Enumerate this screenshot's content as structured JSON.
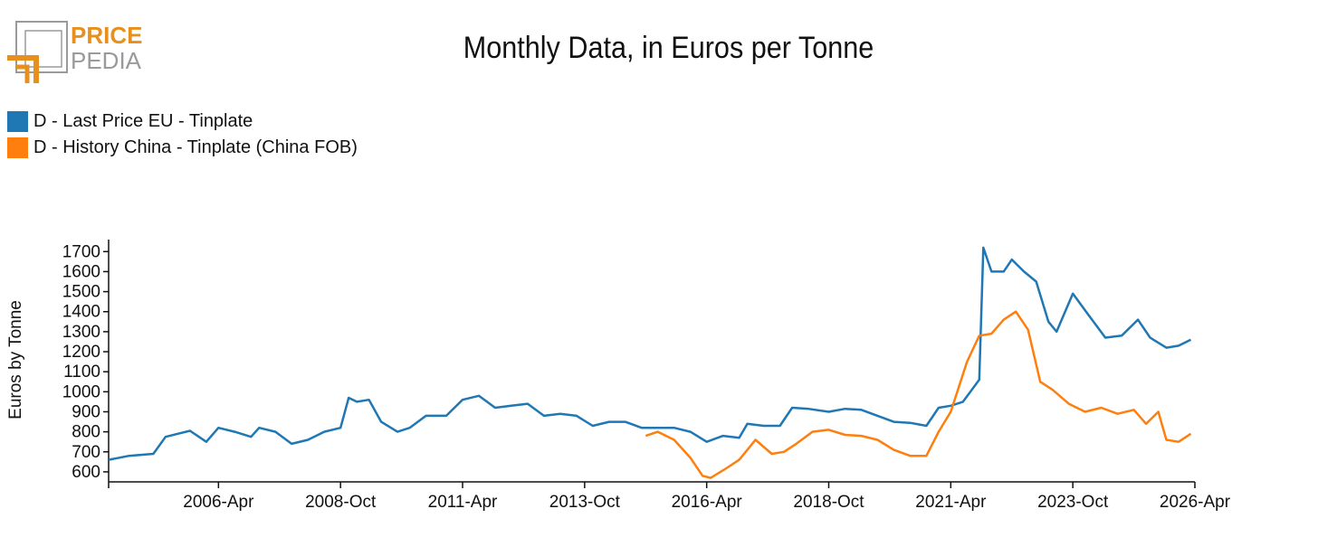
{
  "logo": {
    "line1": "PRICE",
    "line2": "PEDIA"
  },
  "colors": {
    "series1": "#1f77b4",
    "series2": "#ff7f0e",
    "logo_orange": "#e8901e",
    "logo_gray": "#9a9a9a"
  },
  "chart_data": {
    "type": "line",
    "title": "Monthly Data, in Euros per Tonne",
    "xlabel": "",
    "ylabel": "Euros by Tonne",
    "x_start": "2004-01",
    "x_end": "2026-04",
    "ylim": [
      550,
      1760
    ],
    "yticks": [
      600,
      700,
      800,
      900,
      1000,
      1100,
      1200,
      1300,
      1400,
      1500,
      1600,
      1700
    ],
    "xticks": [
      "2006-Apr",
      "2008-Oct",
      "2011-Apr",
      "2013-Oct",
      "2016-Apr",
      "2018-Oct",
      "2021-Apr",
      "2023-Oct",
      "2026-Apr"
    ],
    "legend_position": "top-left",
    "grid": false,
    "series": [
      {
        "name": "D - Last Price EU - Tinplate",
        "color": "#1f77b4",
        "points": [
          [
            "2004-01",
            660
          ],
          [
            "2004-06",
            680
          ],
          [
            "2004-12",
            690
          ],
          [
            "2005-03",
            775
          ],
          [
            "2005-06",
            790
          ],
          [
            "2005-09",
            805
          ],
          [
            "2006-01",
            750
          ],
          [
            "2006-04",
            820
          ],
          [
            "2006-08",
            800
          ],
          [
            "2006-12",
            775
          ],
          [
            "2007-02",
            820
          ],
          [
            "2007-06",
            800
          ],
          [
            "2007-10",
            740
          ],
          [
            "2008-02",
            760
          ],
          [
            "2008-06",
            800
          ],
          [
            "2008-10",
            820
          ],
          [
            "2008-12",
            970
          ],
          [
            "2009-02",
            950
          ],
          [
            "2009-05",
            960
          ],
          [
            "2009-08",
            850
          ],
          [
            "2009-12",
            800
          ],
          [
            "2010-03",
            820
          ],
          [
            "2010-07",
            880
          ],
          [
            "2010-12",
            880
          ],
          [
            "2011-04",
            960
          ],
          [
            "2011-08",
            980
          ],
          [
            "2011-12",
            920
          ],
          [
            "2012-04",
            930
          ],
          [
            "2012-08",
            940
          ],
          [
            "2012-12",
            880
          ],
          [
            "2013-04",
            890
          ],
          [
            "2013-08",
            880
          ],
          [
            "2013-12",
            830
          ],
          [
            "2014-04",
            850
          ],
          [
            "2014-08",
            850
          ],
          [
            "2014-12",
            820
          ],
          [
            "2015-04",
            820
          ],
          [
            "2015-08",
            820
          ],
          [
            "2015-12",
            800
          ],
          [
            "2016-04",
            750
          ],
          [
            "2016-08",
            780
          ],
          [
            "2016-12",
            770
          ],
          [
            "2017-02",
            840
          ],
          [
            "2017-06",
            830
          ],
          [
            "2017-10",
            830
          ],
          [
            "2018-01",
            920
          ],
          [
            "2018-05",
            915
          ],
          [
            "2018-10",
            900
          ],
          [
            "2019-02",
            915
          ],
          [
            "2019-06",
            910
          ],
          [
            "2019-10",
            880
          ],
          [
            "2020-02",
            850
          ],
          [
            "2020-06",
            845
          ],
          [
            "2020-10",
            830
          ],
          [
            "2021-01",
            920
          ],
          [
            "2021-04",
            930
          ],
          [
            "2021-07",
            950
          ],
          [
            "2021-11",
            1060
          ],
          [
            "2021-12",
            1720
          ],
          [
            "2022-02",
            1600
          ],
          [
            "2022-05",
            1600
          ],
          [
            "2022-07",
            1660
          ],
          [
            "2022-10",
            1600
          ],
          [
            "2023-01",
            1550
          ],
          [
            "2023-04",
            1350
          ],
          [
            "2023-06",
            1300
          ],
          [
            "2023-10",
            1490
          ],
          [
            "2024-02",
            1380
          ],
          [
            "2024-06",
            1270
          ],
          [
            "2024-10",
            1280
          ],
          [
            "2025-02",
            1360
          ],
          [
            "2025-05",
            1270
          ],
          [
            "2025-09",
            1220
          ],
          [
            "2025-12",
            1230
          ],
          [
            "2026-03",
            1260
          ]
        ]
      },
      {
        "name": "D - History China - Tinplate (China FOB)",
        "color": "#ff7f0e",
        "points": [
          [
            "2015-01",
            780
          ],
          [
            "2015-04",
            800
          ],
          [
            "2015-08",
            760
          ],
          [
            "2015-12",
            670
          ],
          [
            "2016-03",
            580
          ],
          [
            "2016-05",
            570
          ],
          [
            "2016-09",
            620
          ],
          [
            "2016-12",
            660
          ],
          [
            "2017-04",
            760
          ],
          [
            "2017-08",
            690
          ],
          [
            "2017-11",
            700
          ],
          [
            "2018-02",
            740
          ],
          [
            "2018-06",
            800
          ],
          [
            "2018-10",
            810
          ],
          [
            "2019-02",
            785
          ],
          [
            "2019-06",
            780
          ],
          [
            "2019-10",
            760
          ],
          [
            "2020-02",
            710
          ],
          [
            "2020-06",
            680
          ],
          [
            "2020-10",
            680
          ],
          [
            "2021-01",
            800
          ],
          [
            "2021-04",
            900
          ],
          [
            "2021-08",
            1150
          ],
          [
            "2021-11",
            1280
          ],
          [
            "2022-02",
            1290
          ],
          [
            "2022-05",
            1360
          ],
          [
            "2022-08",
            1400
          ],
          [
            "2022-11",
            1310
          ],
          [
            "2023-02",
            1050
          ],
          [
            "2023-05",
            1010
          ],
          [
            "2023-09",
            940
          ],
          [
            "2024-01",
            900
          ],
          [
            "2024-05",
            920
          ],
          [
            "2024-09",
            890
          ],
          [
            "2025-01",
            910
          ],
          [
            "2025-04",
            840
          ],
          [
            "2025-07",
            900
          ],
          [
            "2025-09",
            760
          ],
          [
            "2025-12",
            750
          ],
          [
            "2026-03",
            790
          ]
        ]
      }
    ]
  }
}
